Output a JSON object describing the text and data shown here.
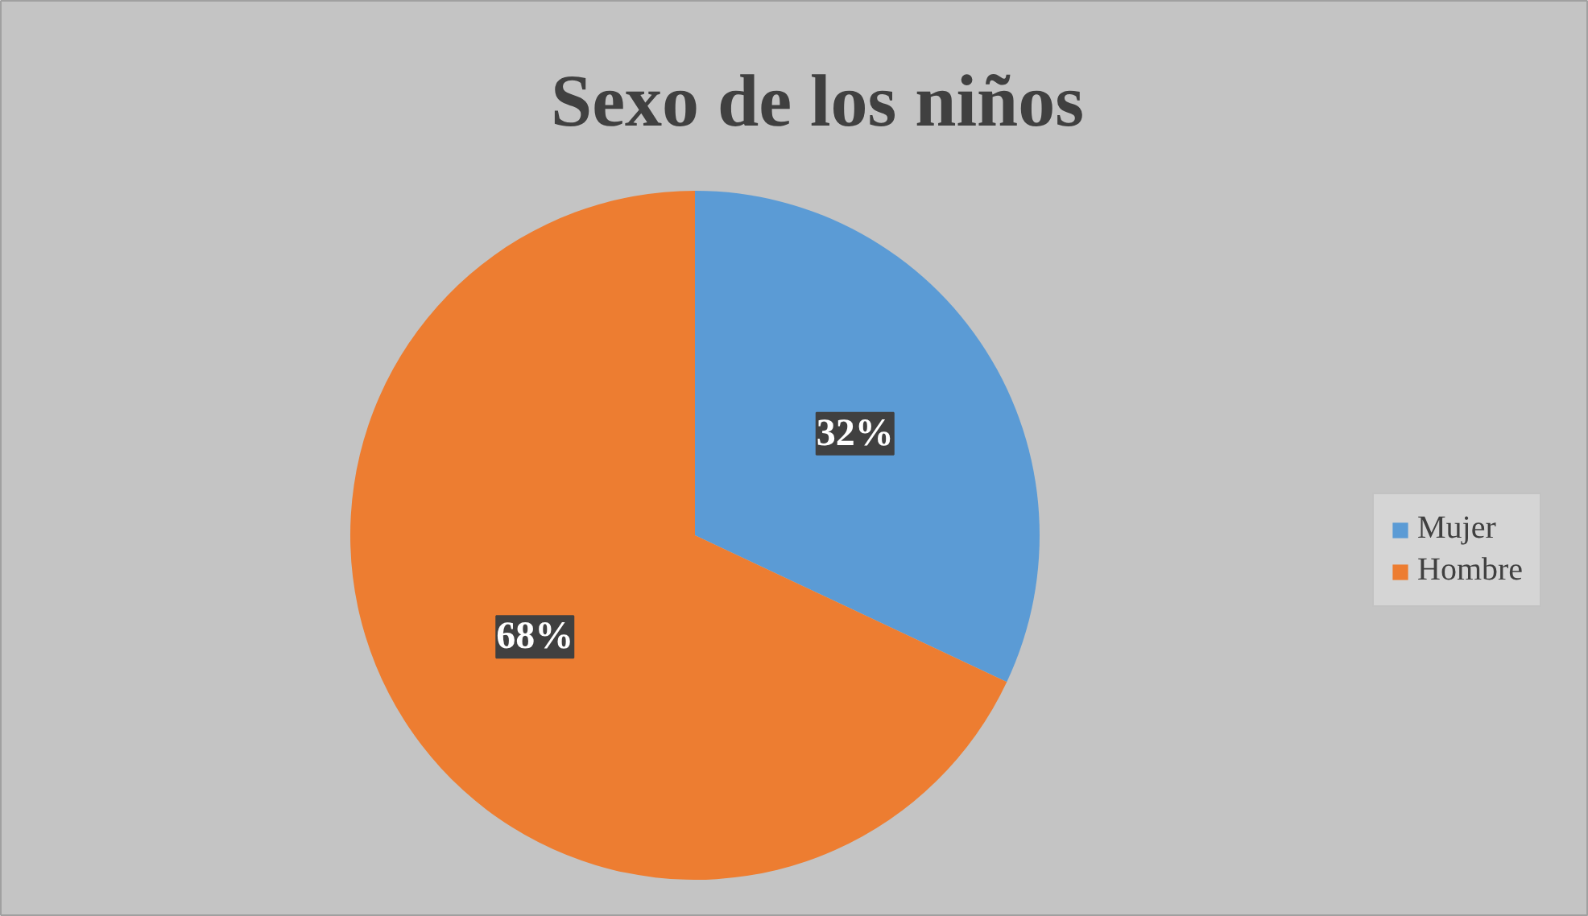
{
  "chart_data": {
    "type": "pie",
    "title": "Sexo de los niños",
    "categories": [
      "Mujer",
      "Hombre"
    ],
    "values": [
      32,
      68
    ],
    "colors": [
      "#5b9bd5",
      "#ed7d31"
    ],
    "value_labels": [
      "32%",
      "68%"
    ],
    "legend": "right"
  }
}
